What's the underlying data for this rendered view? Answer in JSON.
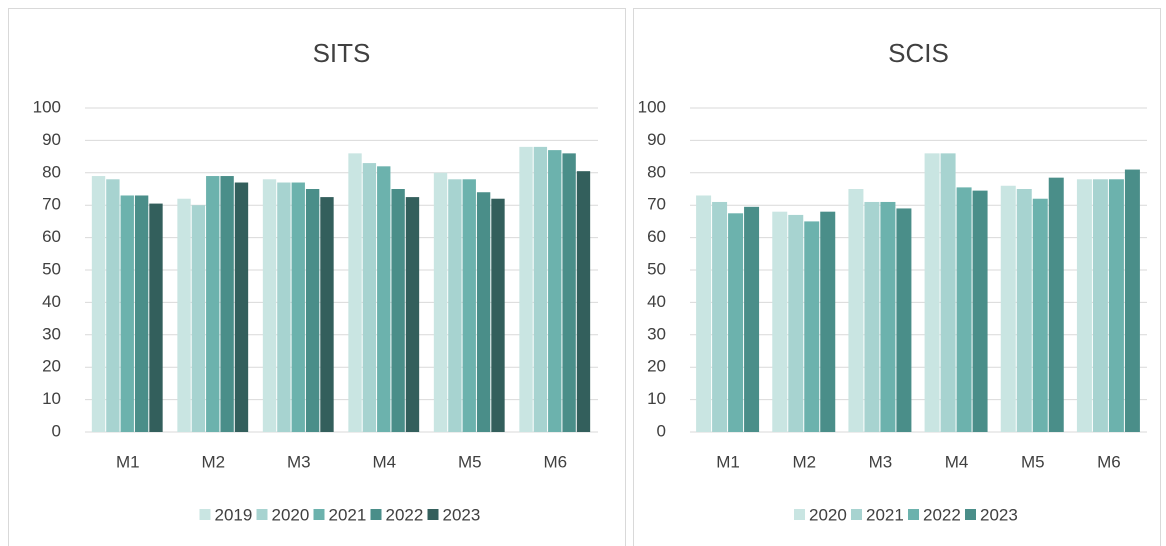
{
  "chart_data": [
    {
      "type": "bar",
      "title": "SITS",
      "categories": [
        "M1",
        "M2",
        "M3",
        "M4",
        "M5",
        "M6"
      ],
      "series": [
        {
          "name": "2019",
          "color": "#c9e5e2",
          "values": [
            79,
            72,
            78,
            86,
            80,
            88
          ]
        },
        {
          "name": "2020",
          "color": "#a7d3d0",
          "values": [
            78,
            70,
            77,
            83,
            78,
            88
          ]
        },
        {
          "name": "2021",
          "color": "#6cb2ad",
          "values": [
            73,
            79,
            77,
            82,
            78,
            87
          ]
        },
        {
          "name": "2022",
          "color": "#4a8e89",
          "values": [
            73,
            79,
            75,
            75,
            74,
            86
          ]
        },
        {
          "name": "2023",
          "color": "#335f5c",
          "values": [
            70.5,
            77,
            72.5,
            72.5,
            72,
            80.5
          ]
        }
      ],
      "ylim": [
        0,
        100
      ],
      "yticks": [
        0,
        10,
        20,
        30,
        40,
        50,
        60,
        70,
        80,
        90,
        100
      ],
      "grid": true,
      "legend": "bottom"
    },
    {
      "type": "bar",
      "title": "SCIS",
      "categories": [
        "M1",
        "M2",
        "M3",
        "M4",
        "M5",
        "M6"
      ],
      "series": [
        {
          "name": "2020",
          "color": "#c9e5e2",
          "values": [
            73,
            68,
            75,
            86,
            76,
            78
          ]
        },
        {
          "name": "2021",
          "color": "#a7d3d0",
          "values": [
            71,
            67,
            71,
            86,
            75,
            78
          ]
        },
        {
          "name": "2022",
          "color": "#6cb2ad",
          "values": [
            67.5,
            65,
            71,
            75.5,
            72,
            78
          ]
        },
        {
          "name": "2023",
          "color": "#4a8e89",
          "values": [
            69.5,
            68,
            69,
            74.5,
            78.5,
            81
          ]
        }
      ],
      "ylim": [
        0,
        100
      ],
      "yticks": [
        0,
        10,
        20,
        30,
        40,
        50,
        60,
        70,
        80,
        90,
        100
      ],
      "grid": true,
      "legend": "bottom"
    }
  ]
}
